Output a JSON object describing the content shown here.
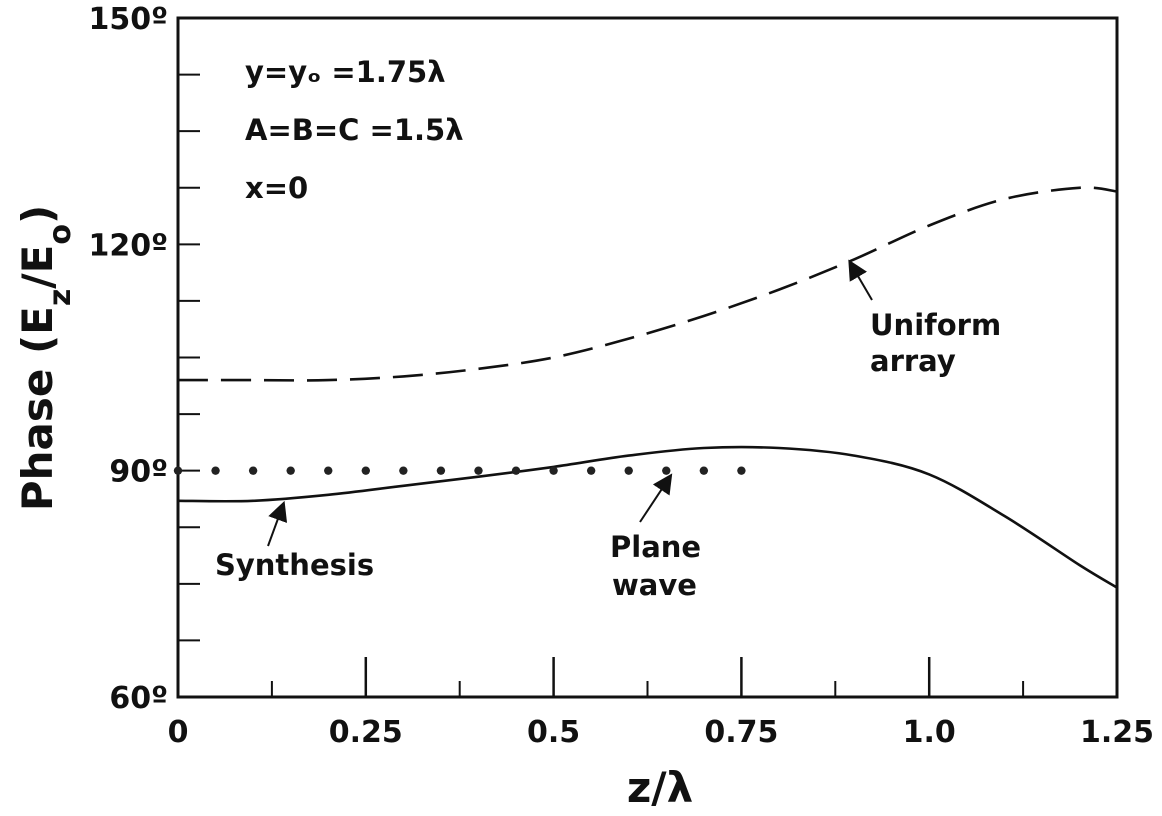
{
  "chart_data": {
    "type": "line",
    "title": "",
    "xlabel": "z/λ",
    "ylabel": "Phase (E_z/E_o)",
    "xlim": [
      0,
      1.25
    ],
    "ylim": [
      60,
      150
    ],
    "xticks": [
      0,
      0.25,
      0.5,
      0.75,
      1.0,
      1.25
    ],
    "xtick_labels": [
      "0",
      "0.25",
      "0.5",
      "0.75",
      "1.0",
      "1.25"
    ],
    "yticks": [
      60,
      90,
      120,
      150
    ],
    "ytick_labels": [
      "60º",
      "90º",
      "120º",
      "150º"
    ],
    "grid": false,
    "parameters": [
      "y=yₒ =1.75λ",
      "A=B=C =1.5λ",
      "x=0"
    ],
    "series": [
      {
        "name": "Uniform array",
        "style": "dashed",
        "x": [
          0,
          0.1,
          0.2,
          0.3,
          0.4,
          0.5,
          0.6,
          0.7,
          0.8,
          0.9,
          1.0,
          1.1,
          1.2,
          1.25
        ],
        "y": [
          102,
          102,
          102,
          102.5,
          103.5,
          105,
          107.5,
          110.5,
          114,
          118,
          122.5,
          126,
          127.5,
          127
        ]
      },
      {
        "name": "Synthesis",
        "style": "solid",
        "x": [
          0,
          0.1,
          0.2,
          0.3,
          0.4,
          0.5,
          0.6,
          0.7,
          0.8,
          0.9,
          1.0,
          1.1,
          1.2,
          1.25
        ],
        "y": [
          86,
          86,
          86.8,
          88,
          89.2,
          90.5,
          92,
          93,
          93,
          92,
          89.5,
          84,
          77.5,
          74.5
        ]
      },
      {
        "name": "Plane wave",
        "style": "dotted",
        "x": [
          0,
          0.05,
          0.1,
          0.15,
          0.2,
          0.25,
          0.3,
          0.35,
          0.4,
          0.45,
          0.5,
          0.55,
          0.6,
          0.65,
          0.7,
          0.75
        ],
        "y": [
          90,
          90,
          90,
          90,
          90,
          90,
          90,
          90,
          90,
          90,
          90,
          90,
          90,
          90,
          90,
          90
        ]
      }
    ],
    "annotations": [
      {
        "lines": [
          "Uniform",
          "array"
        ],
        "target_x": 0.895,
        "target_y": 117
      },
      {
        "lines": [
          "Synthesis"
        ],
        "target_x": 0.14,
        "target_y": 86.3
      },
      {
        "lines": [
          "Plane",
          "wave"
        ],
        "target_x": 0.655,
        "target_y": 90
      }
    ]
  }
}
